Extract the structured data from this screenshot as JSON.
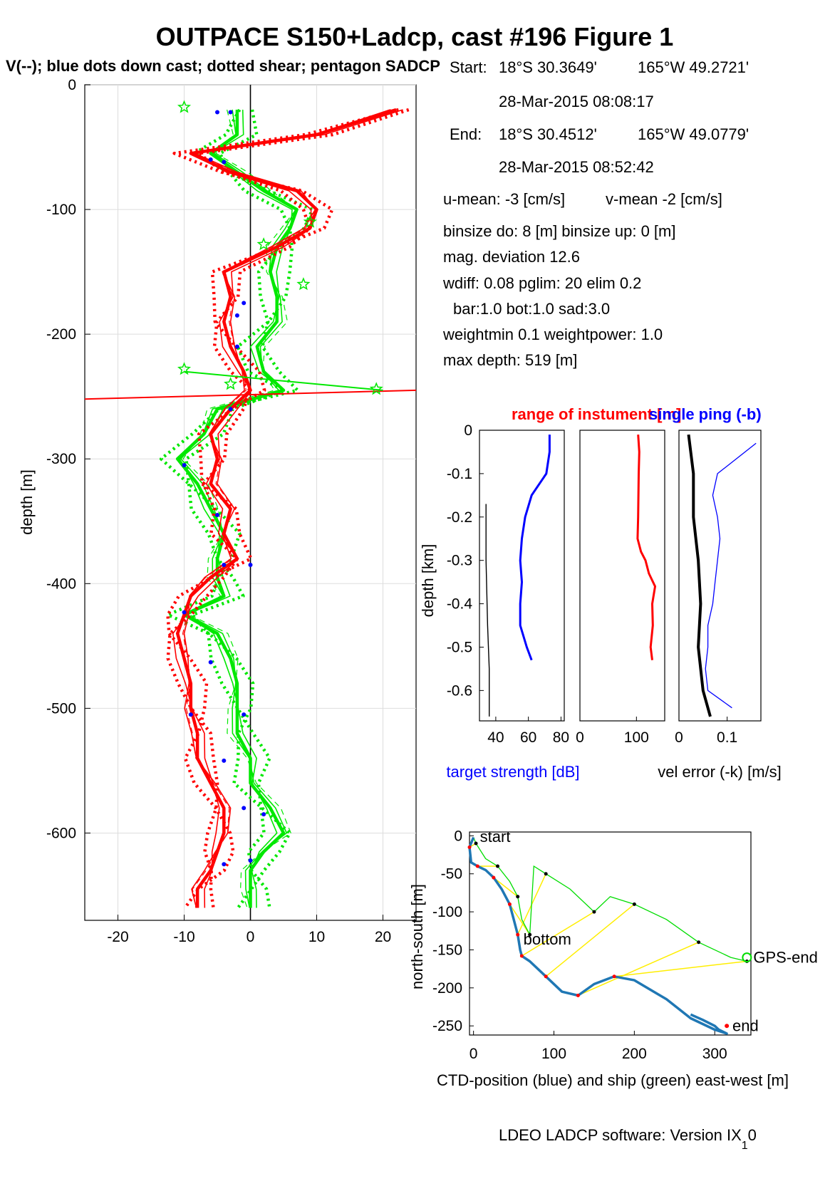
{
  "figure": {
    "title": "OUTPACE S150+Ladcp, cast #196  Figure 1",
    "subtitle": "V(--); blue dots down cast; dotted shear; pentagon SADCP",
    "footer": "LDEO LADCP software: Version IX",
    "footer_sub": "1",
    "footer_tail": "0"
  },
  "info": {
    "start_label": "Start:",
    "start_lat": "18°S 30.3649'",
    "start_lon": "165°W 49.2721'",
    "start_time": "28-Mar-2015 08:08:17",
    "end_label": "End:",
    "end_lat": "18°S 30.4512'",
    "end_lon": "165°W 49.0779'",
    "end_time": "28-Mar-2015 08:52:42",
    "u_mean": "u-mean:  -3 [cm/s]",
    "v_mean": "v-mean  -2 [cm/s]",
    "binsize": "binsize do: 8 [m]  binsize up:  0 [m]",
    "mag_dev": "mag. deviation 12.6",
    "wdiff": "wdiff: 0.08  pglim: 20  elim 0.2",
    "bar": "bar:1.0 bot:1.0 sad:3.0",
    "weight": "weightmin 0.1  weightpower: 1.0",
    "maxdepth": "max depth: 519 [m]"
  },
  "colors": {
    "red": "#ff0000",
    "green": "#00e800",
    "blue": "#0000ff",
    "ctd": "#1f77b4",
    "ship": "#00dd00",
    "link": "#ffee00"
  },
  "chart_data": [
    {
      "type": "line",
      "name": "velocity-profile",
      "ylabel": "depth [m]",
      "xlabel": "",
      "xlim": [
        -25,
        25
      ],
      "ylim": [
        -670,
        0
      ],
      "xticks": [
        -20,
        -10,
        0,
        10,
        20
      ],
      "yticks": [
        0,
        -100,
        -200,
        -300,
        -400,
        -500,
        -600
      ],
      "grid": true,
      "depth": [
        -20,
        -40,
        -55,
        -70,
        -85,
        -100,
        -115,
        -130,
        -150,
        -170,
        -190,
        -210,
        -230,
        -245,
        -260,
        -280,
        -300,
        -320,
        -340,
        -360,
        -380,
        -395,
        -410,
        -425,
        -440,
        -460,
        -480,
        -500,
        -520,
        -540,
        -560,
        -580,
        -600,
        -615,
        -630,
        -645,
        -660
      ],
      "u_profile": [
        22,
        10,
        -9,
        -3,
        7,
        10,
        9,
        4,
        -4,
        -3,
        -4,
        -3,
        -1,
        0,
        -3,
        -6,
        -5,
        -6,
        -3,
        -4,
        -2,
        -6,
        -9,
        -10,
        -11,
        -10,
        -9,
        -9,
        -8,
        -8,
        -6,
        -4,
        -4,
        -5,
        -6,
        -8,
        -8
      ],
      "v_profile": [
        -2,
        -2,
        -6,
        -2,
        2,
        7,
        6,
        4,
        3,
        4,
        4,
        1,
        2,
        5,
        -5,
        -7,
        -11,
        -8,
        -6,
        -4,
        -5,
        -5,
        -4,
        -10,
        -5,
        -3,
        -2,
        -2,
        -2,
        0,
        0,
        3,
        5,
        2,
        0,
        0,
        0
      ],
      "spike_depth": -245,
      "spike_u": [
        -25,
        25
      ],
      "spike_v": [
        -10,
        20
      ],
      "downcast_dots": [
        [
          -5,
          -22
        ],
        [
          -3,
          -22
        ],
        [
          -4,
          -62
        ],
        [
          -6,
          -60
        ],
        [
          -1,
          -175
        ],
        [
          -2,
          -185
        ],
        [
          -2,
          -210
        ],
        [
          -3,
          -260
        ],
        [
          -10,
          -305
        ],
        [
          -5,
          -345
        ],
        [
          -4,
          -385
        ],
        [
          0,
          -385
        ],
        [
          -10,
          -423
        ],
        [
          -6,
          -463
        ],
        [
          -9,
          -505
        ],
        [
          -1,
          -505
        ],
        [
          -4,
          -542
        ],
        [
          -1,
          -580
        ],
        [
          2,
          -585
        ],
        [
          -4,
          -625
        ],
        [
          0,
          -622
        ]
      ],
      "sadcp_pentagons": [
        [
          -10,
          -18
        ],
        [
          -10,
          -228
        ],
        [
          19,
          -244
        ],
        [
          -3,
          -240
        ],
        [
          8,
          -160
        ],
        [
          9,
          -110
        ],
        [
          2,
          -128
        ]
      ]
    },
    {
      "type": "line",
      "name": "target-strength",
      "ylabel": "depth [km]",
      "xlabel": "target strength [dB]",
      "xlim": [
        30,
        82
      ],
      "ylim": [
        -0.67,
        0
      ],
      "xticks": [
        40,
        60,
        80
      ],
      "yticks": [
        0,
        -0.1,
        -0.2,
        -0.3,
        -0.4,
        -0.5,
        -0.6
      ],
      "series": [
        {
          "name": "target strength",
          "depth": [
            -0.01,
            -0.05,
            -0.1,
            -0.15,
            -0.2,
            -0.25,
            -0.3,
            -0.35,
            -0.4,
            -0.45,
            -0.5,
            -0.53
          ],
          "values": [
            73,
            73,
            71,
            62,
            58,
            56,
            55,
            56,
            55,
            55,
            59,
            62
          ]
        },
        {
          "name": "noise",
          "depth": [
            -0.17,
            -0.3,
            -0.45,
            -0.55,
            -0.66
          ],
          "values": [
            34,
            34,
            35,
            36,
            36
          ]
        }
      ]
    },
    {
      "type": "line",
      "name": "range-of-instrument",
      "title": "range of instument [m]",
      "xlim": [
        0,
        150
      ],
      "ylim": [
        -0.67,
        0
      ],
      "xticks": [
        0,
        100
      ],
      "series": [
        {
          "name": "range",
          "depth": [
            -0.01,
            -0.05,
            -0.1,
            -0.2,
            -0.25,
            -0.28,
            -0.3,
            -0.33,
            -0.36,
            -0.4,
            -0.45,
            -0.5,
            -0.53
          ],
          "values": [
            103,
            105,
            104,
            103,
            102,
            108,
            116,
            122,
            133,
            128,
            129,
            125,
            128
          ]
        }
      ]
    },
    {
      "type": "line",
      "name": "single-ping",
      "title": "single ping (-b)",
      "xlabel": "vel error (-k) [m/s]",
      "xlim": [
        0,
        0.17
      ],
      "ylim": [
        -0.67,
        0
      ],
      "xticks": [
        0,
        0.1
      ],
      "series": [
        {
          "name": "vel error",
          "depth": [
            -0.01,
            -0.1,
            -0.2,
            -0.3,
            -0.4,
            -0.5,
            -0.6,
            -0.66
          ],
          "values": [
            0.02,
            0.03,
            0.03,
            0.04,
            0.045,
            0.04,
            0.05,
            0.065
          ]
        },
        {
          "name": "single ping",
          "depth": [
            -0.03,
            -0.1,
            -0.15,
            -0.2,
            -0.25,
            -0.3,
            -0.35,
            -0.4,
            -0.45,
            -0.5,
            -0.55,
            -0.6,
            -0.64
          ],
          "values": [
            0.16,
            0.08,
            0.07,
            0.08,
            0.085,
            0.08,
            0.075,
            0.07,
            0.06,
            0.06,
            0.055,
            0.06,
            0.11
          ]
        }
      ]
    },
    {
      "type": "line",
      "name": "ctd-position",
      "xlabel": "CTD-position (blue) and ship (green) east-west [m]",
      "ylabel": "north-south [m]",
      "xlim": [
        -5,
        345
      ],
      "ylim": [
        -262,
        5
      ],
      "xticks": [
        0,
        100,
        200,
        300
      ],
      "yticks": [
        0,
        -50,
        -100,
        -150,
        -200,
        -250
      ],
      "labels": {
        "start": "start",
        "bottom": "bottom",
        "gps_end": "GPS-end",
        "end": "end"
      },
      "ctd": {
        "x": [
          0,
          -5,
          -3,
          5,
          15,
          25,
          35,
          45,
          50,
          55,
          58,
          60,
          70,
          90,
          110,
          130,
          150,
          175,
          200,
          240,
          270,
          300,
          315,
          305,
          300,
          285,
          270
        ],
        "y": [
          -2,
          -15,
          -35,
          -40,
          -45,
          -55,
          -70,
          -90,
          -110,
          -130,
          -150,
          -158,
          -165,
          -185,
          -205,
          -210,
          -195,
          -185,
          -190,
          -215,
          -240,
          -255,
          -260,
          -255,
          -250,
          -242,
          -235
        ]
      },
      "ship": {
        "x": [
          0,
          3,
          15,
          30,
          45,
          55,
          60,
          70,
          75,
          90,
          120,
          150,
          170,
          200,
          240,
          280,
          320,
          340
        ],
        "y": [
          -2,
          -10,
          -30,
          -40,
          -60,
          -80,
          -110,
          -130,
          -40,
          -50,
          -70,
          -100,
          -80,
          -90,
          -110,
          -140,
          -160,
          -165
        ]
      }
    }
  ]
}
